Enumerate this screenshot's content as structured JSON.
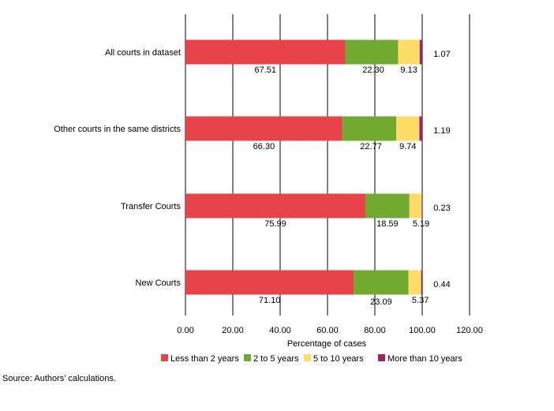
{
  "chart_data": {
    "type": "bar",
    "orientation": "horizontal",
    "stacked": true,
    "categories": [
      "All courts in dataset",
      "Other courts in the same districts",
      "Transfer Courts",
      "New Courts"
    ],
    "series": [
      {
        "name": "Less than 2 years",
        "color": "#e8434b",
        "values": [
          67.51,
          66.3,
          75.99,
          71.1
        ]
      },
      {
        "name": "2 to 5 years",
        "color": "#72a92f",
        "values": [
          22.3,
          22.77,
          18.59,
          23.09
        ]
      },
      {
        "name": "5 to 10 years",
        "color": "#fddc68",
        "values": [
          9.13,
          9.74,
          5.19,
          5.37
        ]
      },
      {
        "name": "More than 10 years",
        "color": "#9c2462",
        "values": [
          1.07,
          1.19,
          0.23,
          0.44
        ]
      }
    ],
    "value_labels": [
      [
        "67.51",
        "22.30",
        "9.13",
        "1.07"
      ],
      [
        "66.30",
        "22.77",
        "9.74",
        "1.19"
      ],
      [
        "75.99",
        "18.59",
        "5.19",
        "0.23"
      ],
      [
        "71.10",
        "23.09",
        "5.37",
        "0.44"
      ]
    ],
    "xlabel": "Percentage of cases",
    "ylabel": "",
    "xlim": [
      0,
      120
    ],
    "xticks": [
      "0.00",
      "20.00",
      "40.00",
      "60.00",
      "80.00",
      "100.00",
      "120.00"
    ],
    "grid": "vertical",
    "legend_position": "bottom"
  },
  "source_note": "Source: Authors’ calculations."
}
